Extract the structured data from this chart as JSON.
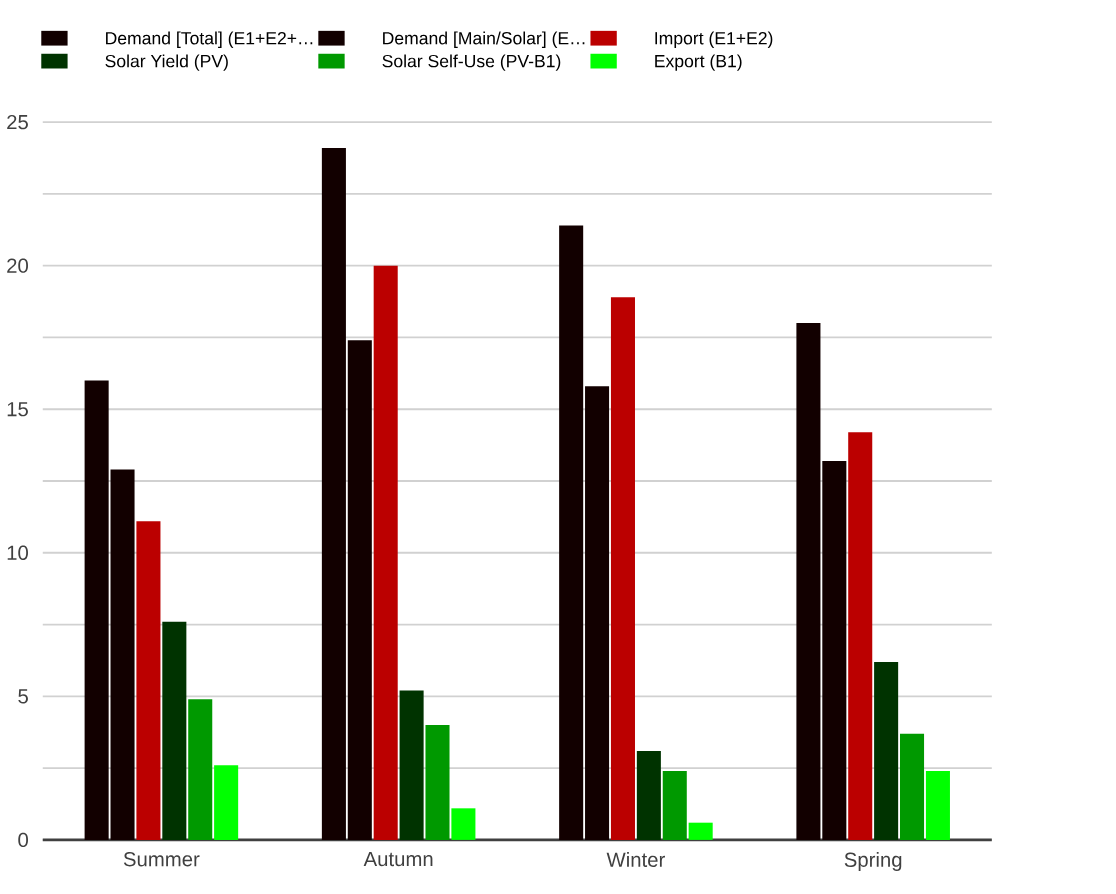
{
  "chart_data": {
    "type": "bar",
    "categories": [
      "Summer",
      "Autumn",
      "Winter",
      "Spring"
    ],
    "series": [
      {
        "name": "Demand [Total] (E1+E2+…",
        "color": "#120000",
        "values": [
          16.0,
          24.1,
          21.4,
          18.0
        ]
      },
      {
        "name": "Demand [Main/Solar] (E…",
        "color": "#120000",
        "values": [
          12.9,
          17.4,
          15.8,
          13.2
        ]
      },
      {
        "name": "Import (E1+E2)",
        "color": "#bb0000",
        "values": [
          11.1,
          20.0,
          18.9,
          14.2
        ]
      },
      {
        "name": "Solar Yield (PV)",
        "color": "#003300",
        "values": [
          7.6,
          5.2,
          3.1,
          6.2
        ]
      },
      {
        "name": "Solar Self-Use (PV-B1)",
        "color": "#009900",
        "values": [
          4.9,
          4.0,
          2.4,
          3.7
        ]
      },
      {
        "name": "Export (B1)",
        "color": "#00ff00",
        "values": [
          2.6,
          1.1,
          0.6,
          2.4
        ]
      }
    ],
    "ylim": [
      0,
      25
    ],
    "yticks": [
      0,
      {
        "value": 2.5,
        "label": null
      },
      5,
      {
        "value": 7.5,
        "label": null
      },
      10,
      {
        "value": 12.5,
        "label": null
      },
      15,
      {
        "value": 17.5,
        "label": null
      },
      20,
      {
        "value": 22.5,
        "label": null
      },
      25
    ],
    "grid": "y",
    "legend": "top"
  }
}
